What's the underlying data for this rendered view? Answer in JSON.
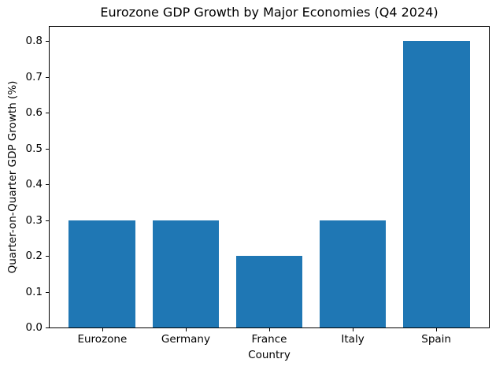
{
  "chart_data": {
    "type": "bar",
    "title": "Eurozone GDP Growth by Major Economies (Q4 2024)",
    "xlabel": "Country",
    "ylabel": "Quarter-on-Quarter GDP Growth (%)",
    "categories": [
      "Eurozone",
      "Germany",
      "France",
      "Italy",
      "Spain"
    ],
    "values": [
      0.3,
      0.3,
      0.2,
      0.3,
      0.8
    ],
    "yticks": [
      0.0,
      0.1,
      0.2,
      0.3,
      0.4,
      0.5,
      0.6,
      0.7,
      0.8
    ],
    "ytick_labels": [
      "0.0",
      "0.1",
      "0.2",
      "0.3",
      "0.4",
      "0.5",
      "0.6",
      "0.7",
      "0.8"
    ],
    "ylim": [
      0,
      0.84
    ],
    "grid": false,
    "legend": "none",
    "bar_color": "#1f77b4",
    "axis_color": "#000000",
    "background_color": "#ffffff"
  }
}
